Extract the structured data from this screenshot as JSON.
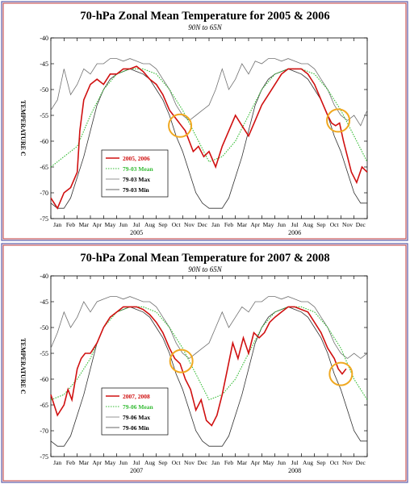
{
  "colors": {
    "frame_blue": "#5a5aa8",
    "frame_red": "#c03a3a",
    "obs": "#d01010",
    "mean": "#33bb33",
    "max": "#707070",
    "min": "#303030",
    "circle": "#f0a820"
  },
  "chart_data": [
    {
      "type": "line",
      "title": "70-hPa Zonal Mean Temperature for 2005 & 2006",
      "subtitle": "90N to 65N",
      "ylabel": "TEMPERATURE C",
      "ylim": [
        -75,
        -40
      ],
      "yticks": [
        -40,
        -45,
        -50,
        -55,
        -60,
        -65,
        -70,
        -75
      ],
      "xlim": [
        0,
        24
      ],
      "month_labels": [
        "Jan",
        "Feb",
        "Mar",
        "Apr",
        "May",
        "Jun",
        "Jul",
        "Aug",
        "Sep",
        "Oct",
        "Nov",
        "Dec",
        "Jan",
        "Feb",
        "Mar",
        "Apr",
        "May",
        "Jun",
        "Jul",
        "Aug",
        "Sep",
        "Oct",
        "Nov",
        "Dec"
      ],
      "year_labels": [
        "2005",
        "2006"
      ],
      "legend": [
        "2005, 2006",
        "79-03 Mean",
        "79-03 Max",
        "79-03 Min"
      ],
      "legend_position": "bottom-left",
      "highlight_circles_month": [
        9.8,
        21.8
      ],
      "highlight_circles_value": [
        -57,
        -56
      ],
      "series": [
        {
          "name": "2005, 2006",
          "style": "obs",
          "x": [
            0,
            0.5,
            1,
            1.5,
            2,
            2.2,
            2.5,
            3,
            3.5,
            4,
            4.5,
            5,
            5.5,
            6,
            6.5,
            7,
            7.5,
            8,
            8.5,
            9,
            9.3,
            9.6,
            9.9,
            10.2,
            10.5,
            10.8,
            11.2,
            11.6,
            12,
            12.5,
            13,
            13.5,
            14,
            14.5,
            15,
            15.5,
            16,
            16.5,
            17,
            17.5,
            18,
            18.5,
            19,
            19.5,
            20,
            20.5,
            21,
            21.3,
            21.6,
            21.9,
            22.2,
            22.5,
            22.8,
            23.2,
            23.6,
            24
          ],
          "y": [
            -71,
            -73,
            -70,
            -69,
            -66,
            -58,
            -52,
            -49,
            -48,
            -49,
            -47,
            -47,
            -46,
            -46,
            -45.5,
            -46.5,
            -48,
            -49,
            -51,
            -54,
            -55,
            -56,
            -57,
            -58,
            -60,
            -62,
            -61,
            -63,
            -62,
            -65,
            -61,
            -58,
            -55,
            -57,
            -59,
            -56,
            -53,
            -51,
            -49,
            -47,
            -46,
            -46,
            -46,
            -47,
            -49,
            -52,
            -55,
            -56.5,
            -57,
            -56.5,
            -60,
            -63,
            -66,
            -68,
            -65,
            -66
          ]
        },
        {
          "name": "79-03 Mean",
          "style": "mean",
          "x": [
            0,
            1,
            2,
            3,
            4,
            5,
            6,
            7,
            8,
            9,
            10,
            11,
            12,
            13,
            14,
            15,
            16,
            17,
            18,
            19,
            20,
            21,
            22,
            23,
            24
          ],
          "y": [
            -65,
            -63,
            -61,
            -55,
            -50,
            -47,
            -46,
            -46,
            -47,
            -50,
            -54,
            -59,
            -64,
            -63,
            -60,
            -55,
            -50,
            -47,
            -46,
            -46,
            -47,
            -50,
            -54,
            -59,
            -64
          ]
        },
        {
          "name": "79-03 Max",
          "style": "max",
          "x": [
            0,
            0.5,
            1,
            1.5,
            2,
            2.5,
            3,
            3.5,
            4,
            4.5,
            5,
            5.5,
            6,
            6.5,
            7,
            7.5,
            8,
            8.5,
            9,
            9.5,
            10,
            10.5,
            11,
            11.5,
            12,
            12.5,
            13,
            13.5,
            14,
            14.5,
            15,
            15.5,
            16,
            16.5,
            17,
            17.5,
            18,
            18.5,
            19,
            19.5,
            20,
            20.5,
            21,
            21.5,
            22,
            22.5,
            23,
            23.5,
            24
          ],
          "y": [
            -54,
            -52,
            -46,
            -51,
            -49,
            -46,
            -47,
            -45,
            -45,
            -44,
            -44,
            -44.5,
            -44,
            -44.5,
            -45,
            -45,
            -46,
            -48,
            -50,
            -53,
            -55,
            -56,
            -55,
            -54,
            -53,
            -50,
            -46,
            -50,
            -48,
            -45,
            -47,
            -44.5,
            -45,
            -44,
            -44,
            -44.5,
            -44,
            -44.5,
            -45,
            -45,
            -46,
            -48,
            -50,
            -53,
            -55,
            -56,
            -55,
            -57,
            -54
          ]
        },
        {
          "name": "79-03 Min",
          "style": "min",
          "x": [
            0,
            0.5,
            1,
            1.5,
            2,
            2.5,
            3,
            3.5,
            4,
            4.5,
            5,
            5.5,
            6,
            6.5,
            7,
            7.5,
            8,
            8.5,
            9,
            9.5,
            10,
            10.5,
            11,
            11.5,
            12,
            12.5,
            13,
            13.5,
            14,
            14.5,
            15,
            15.5,
            16,
            16.5,
            17,
            17.5,
            18,
            18.5,
            19,
            19.5,
            20,
            20.5,
            21,
            21.5,
            22,
            22.5,
            23,
            23.5,
            24
          ],
          "y": [
            -72,
            -73,
            -73,
            -71,
            -67,
            -63,
            -58,
            -53,
            -50,
            -48,
            -47,
            -46.5,
            -46,
            -46.5,
            -47,
            -48,
            -50,
            -52,
            -55,
            -59,
            -62,
            -66,
            -70,
            -72,
            -73,
            -73,
            -73,
            -71,
            -67,
            -63,
            -58,
            -53,
            -50,
            -48,
            -47,
            -46.5,
            -46,
            -46.5,
            -47,
            -48,
            -50,
            -52,
            -55,
            -59,
            -62,
            -66,
            -70,
            -72,
            -72
          ]
        }
      ]
    },
    {
      "type": "line",
      "title": "70-hPa Zonal Mean Temperature for 2007 & 2008",
      "subtitle": "90N to 65N",
      "ylabel": "TEMPERATURE C",
      "ylim": [
        -75,
        -40
      ],
      "yticks": [
        -40,
        -45,
        -50,
        -55,
        -60,
        -65,
        -70,
        -75
      ],
      "xlim": [
        0,
        24
      ],
      "month_labels": [
        "Jan",
        "Feb",
        "Mar",
        "Apr",
        "May",
        "Jun",
        "Jul",
        "Aug",
        "Sep",
        "Oct",
        "Nov",
        "Dec",
        "Jan",
        "Feb",
        "Mar",
        "Apr",
        "May",
        "Jun",
        "Jul",
        "Aug",
        "Sep",
        "Oct",
        "Nov",
        "Dec"
      ],
      "year_labels": [
        "2007",
        "2008"
      ],
      "legend": [
        "2007, 2008",
        "79-06 Mean",
        "79-06 Max",
        "79-06 Min"
      ],
      "legend_position": "bottom-left",
      "highlight_circles_month": [
        9.9,
        22.0
      ],
      "highlight_circles_value": [
        -56.5,
        -59
      ],
      "series": [
        {
          "name": "2007, 2008",
          "style": "obs",
          "x": [
            0,
            0.5,
            1,
            1.3,
            1.6,
            2,
            2.3,
            2.6,
            3,
            3.5,
            4,
            4.5,
            5,
            5.5,
            6,
            6.5,
            7,
            7.5,
            8,
            8.5,
            9,
            9.4,
            9.8,
            10.2,
            10.6,
            11,
            11.4,
            11.8,
            12.2,
            12.6,
            13,
            13.4,
            13.8,
            14.2,
            14.6,
            15,
            15.4,
            15.8,
            16.2,
            16.6,
            17,
            17.5,
            18,
            18.5,
            19,
            19.5,
            20,
            20.5,
            21,
            21.5,
            21.8,
            22.1,
            22.4
          ],
          "y": [
            -63,
            -67,
            -65,
            -62,
            -64,
            -58,
            -56,
            -55,
            -55,
            -53,
            -50,
            -48,
            -47,
            -46,
            -46,
            -46,
            -46.5,
            -47.5,
            -49,
            -51,
            -54,
            -56,
            -57,
            -60,
            -62,
            -66,
            -64,
            -68,
            -69,
            -67,
            -63,
            -58,
            -53,
            -56,
            -52,
            -55,
            -51,
            -52,
            -51,
            -49,
            -48,
            -47,
            -46,
            -46,
            -46.5,
            -47,
            -49,
            -51,
            -54,
            -56,
            -58,
            -59,
            -58
          ]
        },
        {
          "name": "79-06 Mean",
          "style": "mean",
          "x": [
            0,
            1,
            2,
            3,
            4,
            5,
            6,
            7,
            8,
            9,
            10,
            11,
            12,
            13,
            14,
            15,
            16,
            17,
            18,
            19,
            20,
            21,
            22,
            23,
            24
          ],
          "y": [
            -64,
            -63,
            -60,
            -56,
            -50,
            -47,
            -46,
            -46,
            -47,
            -50,
            -54,
            -59,
            -64,
            -63,
            -60,
            -55,
            -50,
            -47,
            -46,
            -46,
            -47,
            -50,
            -54,
            -60,
            -64
          ]
        },
        {
          "name": "79-06 Max",
          "style": "max",
          "x": [
            0,
            0.5,
            1,
            1.5,
            2,
            2.5,
            3,
            3.5,
            4,
            4.5,
            5,
            5.5,
            6,
            6.5,
            7,
            7.5,
            8,
            8.5,
            9,
            9.5,
            10,
            10.5,
            11,
            11.5,
            12,
            12.5,
            13,
            13.5,
            14,
            14.5,
            15,
            15.5,
            16,
            16.5,
            17,
            17.5,
            18,
            18.5,
            19,
            19.5,
            20,
            20.5,
            21,
            21.5,
            22,
            22.5,
            23,
            23.5,
            24
          ],
          "y": [
            -54,
            -51,
            -47,
            -50,
            -48,
            -45,
            -47,
            -45,
            -44.5,
            -44,
            -44,
            -44.5,
            -44,
            -44.5,
            -45,
            -45,
            -46,
            -48,
            -50,
            -53,
            -55,
            -56,
            -55,
            -54,
            -53,
            -50,
            -47,
            -50,
            -48,
            -46,
            -47,
            -45,
            -45,
            -44,
            -44,
            -44.5,
            -44,
            -44.5,
            -45,
            -45,
            -46,
            -48,
            -50,
            -53,
            -55,
            -56,
            -55,
            -56,
            -55
          ]
        },
        {
          "name": "79-06 Min",
          "style": "min",
          "x": [
            0,
            0.5,
            1,
            1.5,
            2,
            2.5,
            3,
            3.5,
            4,
            4.5,
            5,
            5.5,
            6,
            6.5,
            7,
            7.5,
            8,
            8.5,
            9,
            9.5,
            10,
            10.5,
            11,
            11.5,
            12,
            12.5,
            13,
            13.5,
            14,
            14.5,
            15,
            15.5,
            16,
            16.5,
            17,
            17.5,
            18,
            18.5,
            19,
            19.5,
            20,
            20.5,
            21,
            21.5,
            22,
            22.5,
            23,
            23.5,
            24
          ],
          "y": [
            -72,
            -73,
            -73,
            -71,
            -67,
            -63,
            -58,
            -53,
            -50,
            -48,
            -47,
            -46.5,
            -46,
            -46.5,
            -47,
            -48,
            -50,
            -52,
            -55,
            -59,
            -62,
            -66,
            -70,
            -72,
            -73,
            -73,
            -73,
            -71,
            -67,
            -63,
            -58,
            -53,
            -50,
            -48,
            -47,
            -46.5,
            -46,
            -46.5,
            -47,
            -48,
            -50,
            -52,
            -55,
            -59,
            -62,
            -66,
            -70,
            -72,
            -72
          ]
        }
      ]
    }
  ]
}
